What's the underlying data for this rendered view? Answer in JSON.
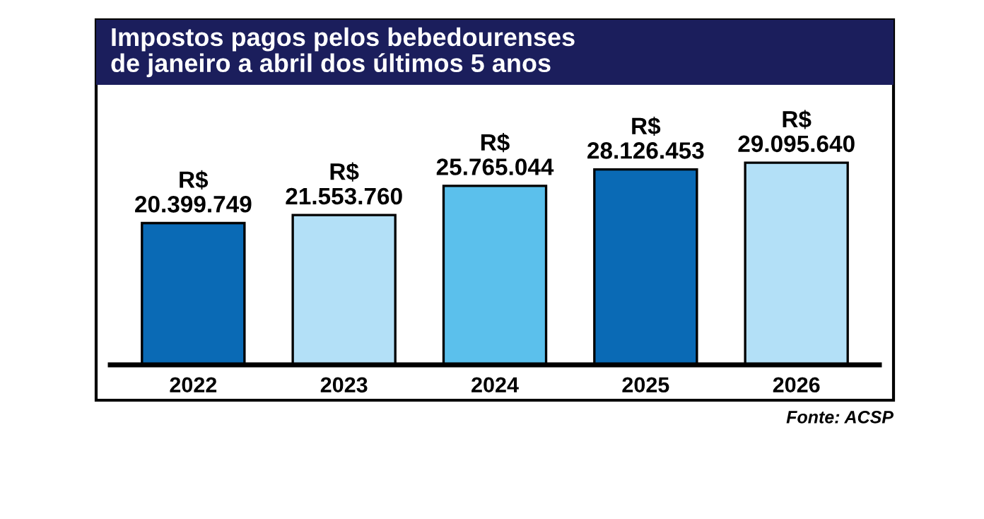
{
  "chart_data": {
    "type": "bar",
    "title": "Impostos pagos pelos bebedourenses\nde janeiro a abril dos últimos 5 anos",
    "categories": [
      "2022",
      "2023",
      "2024",
      "2025",
      "2026"
    ],
    "values": [
      20399749,
      21553760,
      25765044,
      28126453,
      29095640
    ],
    "value_labels": [
      "R$\n20.399.749",
      "R$\n21.553.760",
      "R$\n25.765.044",
      "R$\n28.126.453",
      "R$\n29.095.640"
    ],
    "colors": [
      "#0a6ab5",
      "#b3e0f7",
      "#5bc0ec",
      "#0a6ab5",
      "#b3e0f7"
    ],
    "annotations": [
      "Fonte: ACSP"
    ],
    "grid": false,
    "legend": false
  }
}
